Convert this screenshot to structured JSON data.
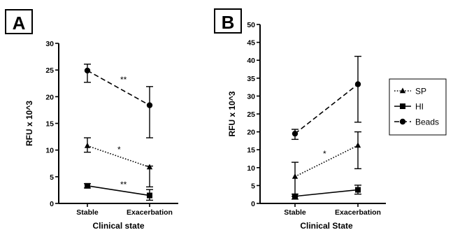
{
  "chart_data": [
    {
      "type": "line",
      "panel_label": "A",
      "xlabel": "Clinical state",
      "ylabel": "RFU x 10^3",
      "categories": [
        "Stable",
        "Exacerbation"
      ],
      "ylim": [
        0,
        30
      ],
      "yticks": [
        0,
        5,
        10,
        15,
        20,
        25,
        30
      ],
      "grid": false,
      "series": [
        {
          "name": "SP",
          "marker": "triangle",
          "line_style": "dotted",
          "values": [
            10.8,
            6.8
          ],
          "error": [
            [
              9.6,
              12.3
            ],
            [
              3.1,
              7.0
            ]
          ],
          "significance": "*"
        },
        {
          "name": "HI",
          "marker": "square",
          "line_style": "solid",
          "values": [
            3.3,
            1.5
          ],
          "error": [
            [
              2.9,
              3.7
            ],
            [
              0.6,
              2.6
            ]
          ],
          "significance": "**"
        },
        {
          "name": "Beads",
          "marker": "circle",
          "line_style": "dashed",
          "values": [
            24.9,
            18.4
          ],
          "error": [
            [
              22.7,
              26.1
            ],
            [
              12.3,
              21.9
            ]
          ],
          "significance": "**"
        }
      ]
    },
    {
      "type": "line",
      "panel_label": "B",
      "xlabel": "Clinical State",
      "ylabel": "RFU x 10^3",
      "categories": [
        "Stable",
        "Exacerbation"
      ],
      "ylim": [
        0,
        50
      ],
      "yticks": [
        0,
        5,
        10,
        15,
        20,
        25,
        30,
        35,
        40,
        45,
        50
      ],
      "grid": false,
      "legend_position": "right",
      "series": [
        {
          "name": "SP",
          "marker": "triangle",
          "line_style": "dotted",
          "values": [
            7.5,
            16.2
          ],
          "error": [
            [
              2.0,
              11.5
            ],
            [
              9.7,
              20.0
            ]
          ],
          "significance": "*"
        },
        {
          "name": "HI",
          "marker": "square",
          "line_style": "solid",
          "values": [
            2.0,
            3.8
          ],
          "error": [
            [
              1.2,
              2.6
            ],
            [
              2.6,
              5.1
            ]
          ],
          "significance": ""
        },
        {
          "name": "Beads",
          "marker": "circle",
          "line_style": "dashed",
          "values": [
            19.5,
            33.3
          ],
          "error": [
            [
              17.9,
              20.7
            ],
            [
              22.7,
              41.1
            ]
          ],
          "significance": ""
        }
      ]
    }
  ]
}
